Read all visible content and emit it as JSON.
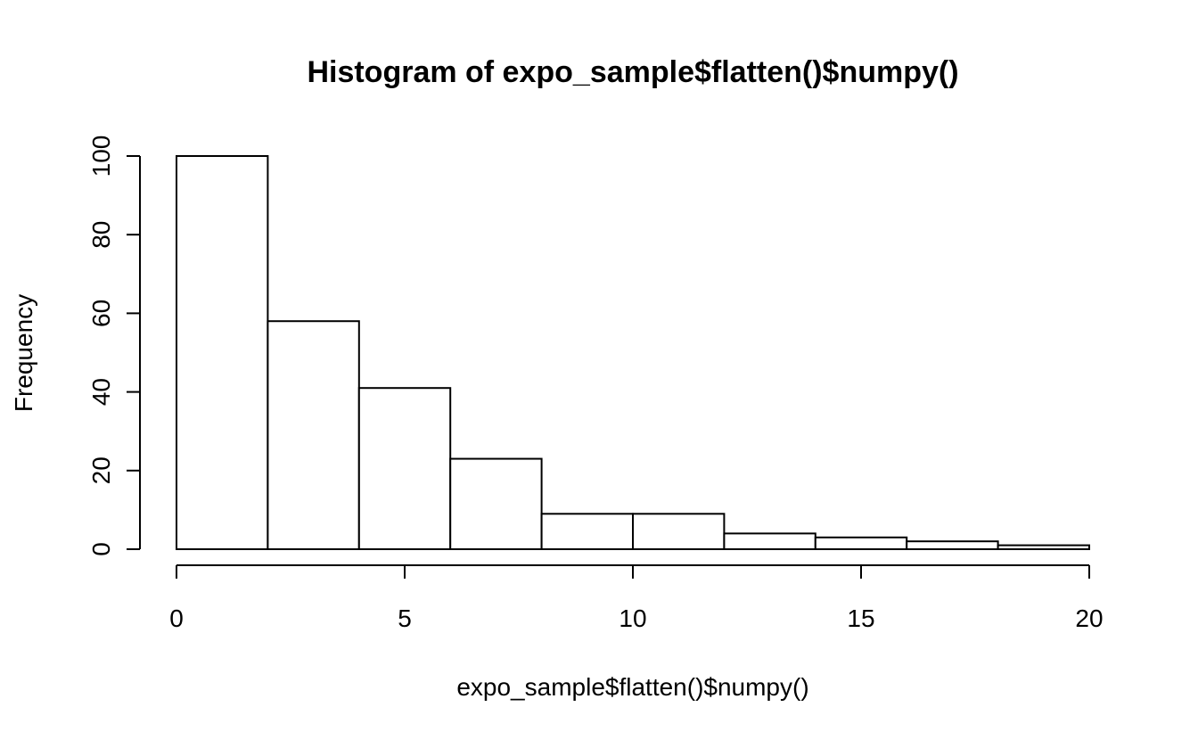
{
  "chart_data": {
    "type": "bar",
    "title": "Histogram of expo_sample$flatten()$numpy()",
    "xlabel": "expo_sample$flatten()$numpy()",
    "ylabel": "Frequency",
    "bins": [
      {
        "start": 0,
        "end": 2,
        "count": 100
      },
      {
        "start": 2,
        "end": 4,
        "count": 58
      },
      {
        "start": 4,
        "end": 6,
        "count": 41
      },
      {
        "start": 6,
        "end": 8,
        "count": 23
      },
      {
        "start": 8,
        "end": 10,
        "count": 9
      },
      {
        "start": 10,
        "end": 12,
        "count": 9
      },
      {
        "start": 12,
        "end": 14,
        "count": 4
      },
      {
        "start": 14,
        "end": 16,
        "count": 3
      },
      {
        "start": 16,
        "end": 18,
        "count": 2
      },
      {
        "start": 18,
        "end": 20,
        "count": 1
      }
    ],
    "xlim": [
      0,
      20
    ],
    "ylim": [
      0,
      100
    ],
    "xticks": [
      0,
      5,
      10,
      15,
      20
    ],
    "yticks": [
      0,
      20,
      40,
      60,
      80,
      100
    ],
    "grid": false,
    "colors": {
      "bar_fill": "#ffffff",
      "bar_stroke": "#000000"
    }
  }
}
